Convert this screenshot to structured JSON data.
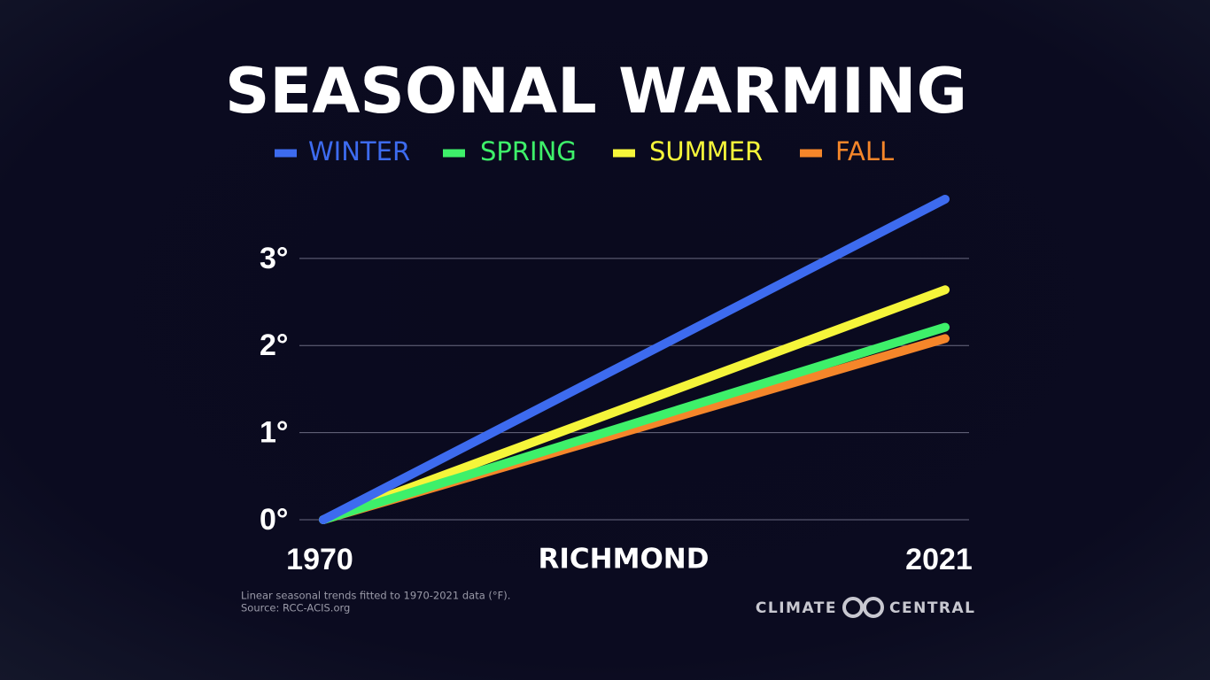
{
  "chart_data": {
    "type": "line",
    "title": "SEASONAL WARMING",
    "location": "RICHMOND",
    "x": [
      1970,
      2021
    ],
    "xlim": [
      1970,
      2021
    ],
    "xticks": [
      1970,
      2021
    ],
    "ylim": [
      0,
      3.7
    ],
    "yticks": [
      {
        "value": 0,
        "label": "0°"
      },
      {
        "value": 1,
        "label": "1°"
      },
      {
        "value": 2,
        "label": "2°"
      },
      {
        "value": 3,
        "label": "3°"
      }
    ],
    "grid": true,
    "series": [
      {
        "name": "WINTER",
        "color": "#3d6bef",
        "values": [
          0,
          3.68
        ]
      },
      {
        "name": "SPRING",
        "color": "#3ef06a",
        "values": [
          0,
          2.21
        ]
      },
      {
        "name": "SUMMER",
        "color": "#f5f53a",
        "values": [
          0,
          2.64
        ]
      },
      {
        "name": "FALL",
        "color": "#f5862a",
        "values": [
          0,
          2.08
        ]
      }
    ],
    "notes": [
      "Linear seasonal trends fitted to 1970-2021 data (°F).",
      "Source: RCC-ACIS.org"
    ],
    "logo": {
      "left": "CLIMATE",
      "right": "CENTRAL"
    }
  }
}
